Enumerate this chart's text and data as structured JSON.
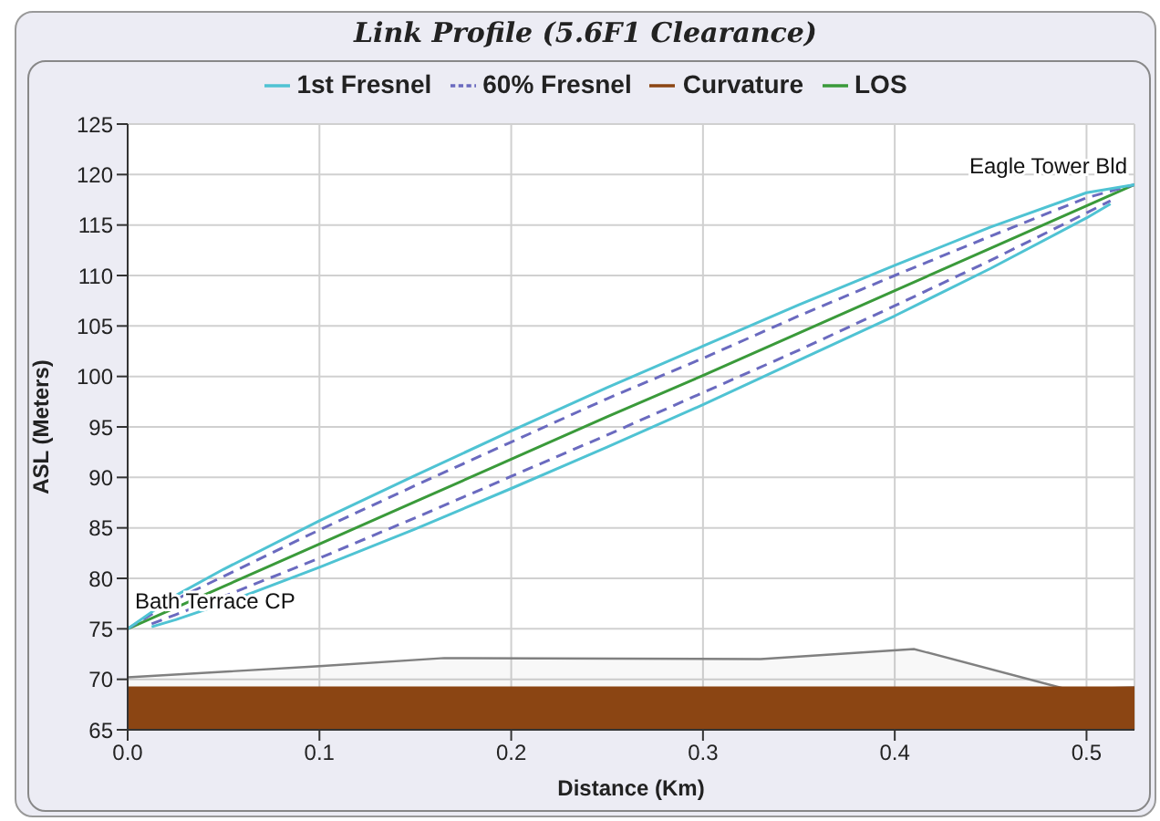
{
  "chart_data": {
    "type": "line",
    "title": "Link Profile (5.6F1 Clearance)",
    "xlabel": "Distance (Km)",
    "ylabel": "ASL (Meters)",
    "xlim": [
      0,
      0.525
    ],
    "xticks": [
      {
        "value": 0,
        "label": "0.0"
      },
      {
        "value": 0.1,
        "label": "0.1"
      },
      {
        "value": 0.2,
        "label": "0.2"
      },
      {
        "value": 0.3,
        "label": "0.3"
      },
      {
        "value": 0.4,
        "label": "0.4"
      },
      {
        "value": 0.5,
        "label": "0.5"
      }
    ],
    "ylim": [
      65,
      125
    ],
    "yticks": [
      65,
      70,
      75,
      80,
      85,
      90,
      95,
      100,
      105,
      110,
      115,
      120,
      125
    ],
    "grid": true,
    "legend": "top",
    "marker": "none",
    "annotations": [
      {
        "text": "Bath Terrace CP",
        "x": 0,
        "y": 75
      },
      {
        "text": "Eagle Tower Bld",
        "x": 0.525,
        "y": 119
      }
    ],
    "series": [
      {
        "type": "area",
        "color": "#808080",
        "x": [
          0,
          0.1,
          0.165,
          0.33,
          0.41,
          0.49,
          0.525
        ],
        "values": [
          70.2,
          71.3,
          72.1,
          72.0,
          73.0,
          69.0,
          69.2
        ]
      },
      {
        "type": "area",
        "name": "Curvature",
        "color": "#8b4513",
        "x": [
          0,
          0.525
        ],
        "values": [
          69.2,
          69.2
        ]
      },
      {
        "name": "LOS",
        "color": "#3a9a3a",
        "x": [
          0,
          0.025,
          0.05,
          0.1,
          0.15,
          0.2,
          0.25,
          0.3,
          0.35,
          0.4,
          0.45,
          0.5,
          0.525
        ],
        "values": [
          75,
          77.1,
          79.2,
          83.4,
          87.6,
          91.8,
          96.0,
          100.1,
          104.3,
          108.5,
          112.7,
          116.9,
          119
        ]
      },
      {
        "name": "60% Fresnel",
        "color": "#6a6abf",
        "line_style": "dashed",
        "x": [
          0,
          0.025,
          0.05,
          0.1,
          0.15,
          0.2,
          0.25,
          0.3,
          0.35,
          0.4,
          0.45,
          0.5,
          0.525
        ],
        "values": [
          75,
          77.9,
          80.2,
          84.8,
          89.2,
          93.5,
          97.8,
          101.8,
          106.0,
          110.0,
          113.9,
          117.7,
          119
        ]
      },
      {
        "color": "#6a6abf",
        "line_style": "dashed",
        "x": [
          0.0125,
          0.025,
          0.05,
          0.1,
          0.15,
          0.2,
          0.25,
          0.3,
          0.35,
          0.4,
          0.45,
          0.5,
          0.5125
        ],
        "values": [
          75.5,
          76.4,
          78.2,
          82.0,
          86.0,
          90.1,
          94.2,
          98.4,
          102.6,
          107.0,
          111.5,
          116.2,
          117.4
        ]
      },
      {
        "name": "1st Fresnel",
        "color": "#4fc3d3",
        "x": [
          0,
          0.025,
          0.05,
          0.1,
          0.15,
          0.2,
          0.25,
          0.3,
          0.35,
          0.4,
          0.45,
          0.5,
          0.525
        ],
        "values": [
          75,
          78.3,
          80.9,
          85.7,
          90.2,
          94.6,
          98.9,
          103.0,
          107.1,
          111.0,
          114.8,
          118.2,
          119
        ]
      },
      {
        "color": "#4fc3d3",
        "x": [
          0.0125,
          0.025,
          0.05,
          0.1,
          0.15,
          0.2,
          0.25,
          0.3,
          0.35,
          0.4,
          0.45,
          0.5,
          0.5125
        ],
        "values": [
          75.2,
          75.9,
          77.5,
          81.1,
          84.9,
          88.9,
          93.0,
          97.2,
          101.6,
          106.0,
          110.7,
          115.7,
          117.1
        ]
      }
    ]
  }
}
